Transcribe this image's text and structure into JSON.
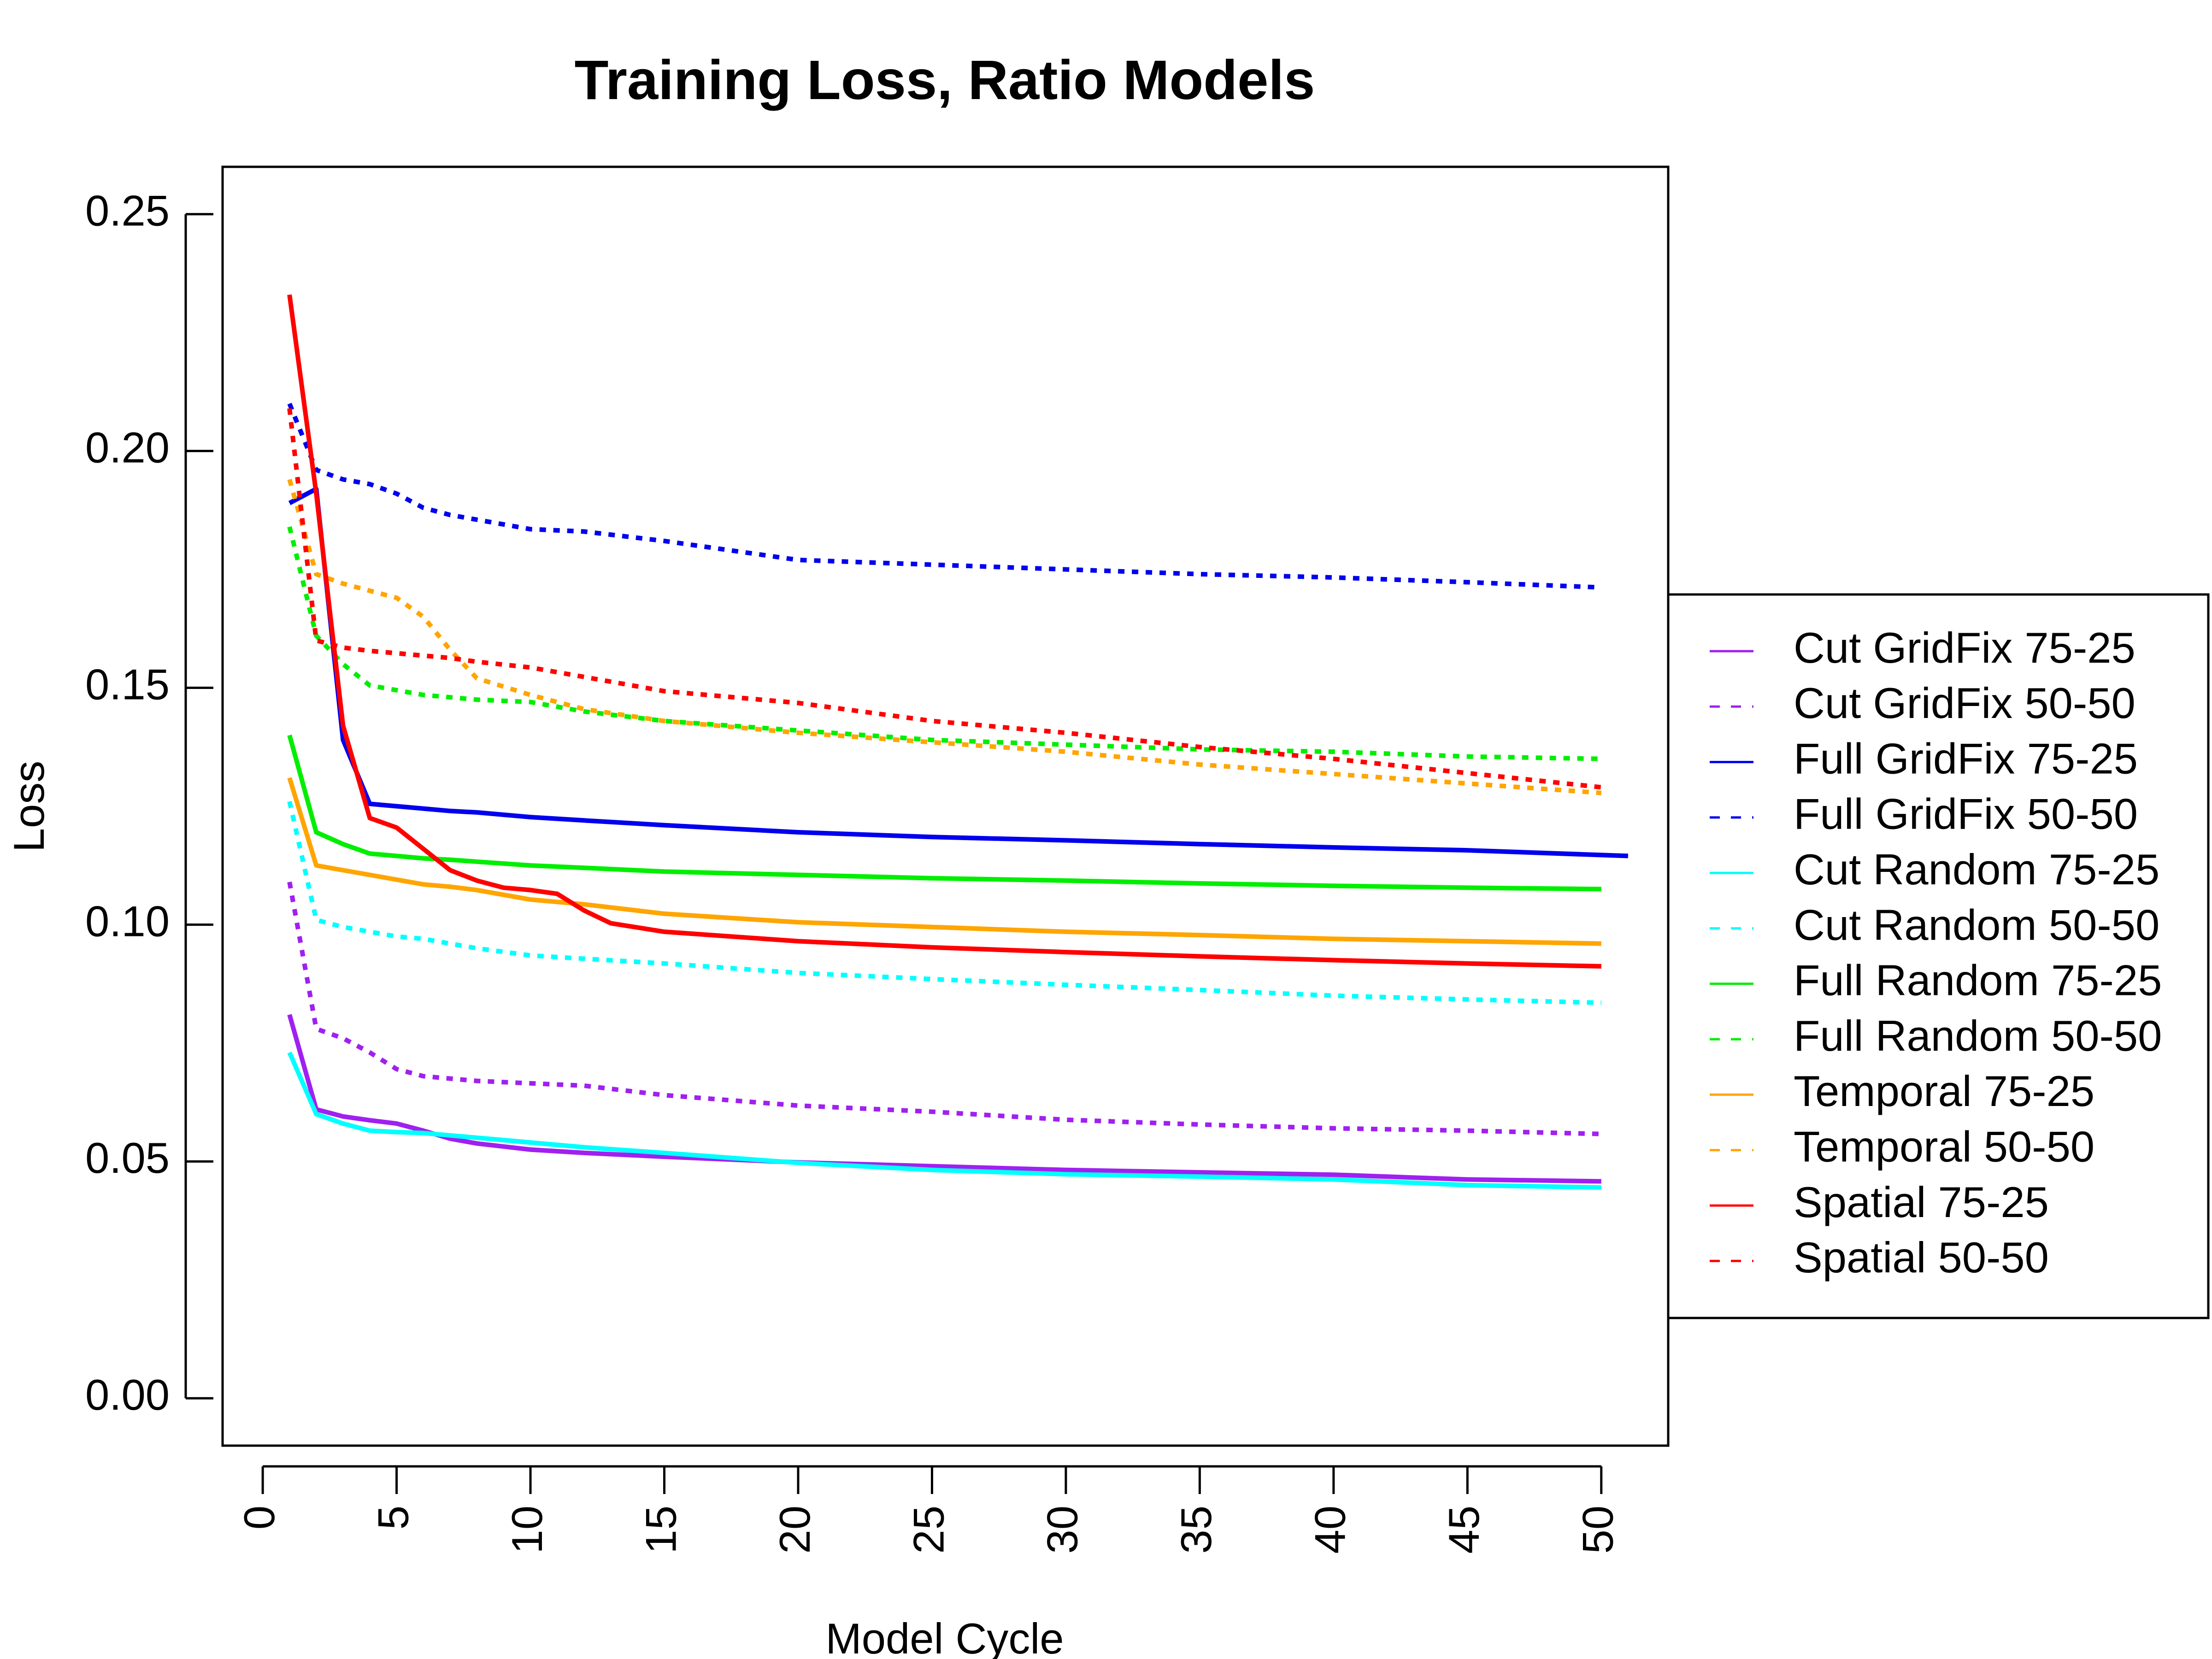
{
  "chart_data": {
    "type": "line",
    "title": "Training Loss, Ratio Models",
    "xlabel": "Model Cycle",
    "ylabel": "Loss",
    "xlim": [
      -1.5,
      52.5
    ],
    "ylim": [
      -0.01,
      0.26
    ],
    "xticks": [
      0,
      5,
      10,
      15,
      20,
      25,
      30,
      35,
      40,
      45,
      50
    ],
    "yticks": [
      0.0,
      0.05,
      0.1,
      0.15,
      0.2,
      0.25
    ],
    "xtick_labels": [
      "0",
      "5",
      "10",
      "15",
      "20",
      "25",
      "30",
      "35",
      "40",
      "45",
      "50"
    ],
    "ytick_labels": [
      "0.00",
      "0.05",
      "0.10",
      "0.15",
      "0.20",
      "0.25"
    ],
    "grid": false,
    "legend_position": "right",
    "series": [
      {
        "name": "Cut GridFix 75-25",
        "color": "#A020F0",
        "dash": "solid",
        "x": [
          1,
          2,
          3,
          4,
          5,
          6,
          7,
          8,
          10,
          12,
          15,
          20,
          25,
          30,
          35,
          40,
          45,
          50
        ],
        "y": [
          0.081,
          0.061,
          0.0595,
          0.0587,
          0.058,
          0.0565,
          0.0548,
          0.0538,
          0.0525,
          0.0518,
          0.051,
          0.0498,
          0.049,
          0.0482,
          0.0477,
          0.0472,
          0.0462,
          0.0458
        ]
      },
      {
        "name": "Cut GridFix 50-50",
        "color": "#A020F0",
        "dash": "dotted",
        "x": [
          1,
          2,
          3,
          4,
          5,
          6,
          7,
          8,
          10,
          12,
          15,
          20,
          25,
          30,
          35,
          40,
          45,
          50
        ],
        "y": [
          0.109,
          0.078,
          0.076,
          0.073,
          0.0695,
          0.068,
          0.0675,
          0.067,
          0.0665,
          0.066,
          0.064,
          0.0618,
          0.0605,
          0.0588,
          0.0578,
          0.057,
          0.0565,
          0.0558
        ]
      },
      {
        "name": "Full GridFix 75-25",
        "color": "#0000EE",
        "dash": "solid",
        "x": [
          1,
          2,
          3,
          4,
          5,
          6,
          7,
          8,
          10,
          12,
          15,
          20,
          25,
          30,
          35,
          40,
          45,
          50,
          51
        ],
        "y": [
          0.189,
          0.192,
          0.139,
          0.1255,
          0.125,
          0.1245,
          0.124,
          0.1237,
          0.1227,
          0.122,
          0.121,
          0.1195,
          0.1185,
          0.1178,
          0.117,
          0.1163,
          0.1157,
          0.1147,
          0.1145
        ]
      },
      {
        "name": "Full GridFix 50-50",
        "color": "#0000EE",
        "dash": "dotted",
        "x": [
          1,
          2,
          3,
          4,
          5,
          6,
          7,
          8,
          10,
          12,
          15,
          20,
          25,
          30,
          35,
          40,
          45,
          50
        ],
        "y": [
          0.21,
          0.196,
          0.194,
          0.193,
          0.191,
          0.188,
          0.1865,
          0.1855,
          0.1835,
          0.183,
          0.181,
          0.177,
          0.176,
          0.175,
          0.174,
          0.1733,
          0.1723,
          0.1712
        ]
      },
      {
        "name": "Cut Random 75-25",
        "color": "#00FFFF",
        "dash": "solid",
        "x": [
          1,
          2,
          3,
          4,
          5,
          6,
          7,
          8,
          10,
          12,
          15,
          20,
          25,
          30,
          35,
          40,
          45,
          50
        ],
        "y": [
          0.073,
          0.06,
          0.058,
          0.0565,
          0.0562,
          0.056,
          0.0555,
          0.055,
          0.054,
          0.053,
          0.0518,
          0.0497,
          0.0482,
          0.0473,
          0.0468,
          0.0462,
          0.045,
          0.0445
        ]
      },
      {
        "name": "Cut Random 50-50",
        "color": "#00FFFF",
        "dash": "dotted",
        "x": [
          1,
          2,
          3,
          4,
          5,
          6,
          7,
          8,
          10,
          12,
          15,
          20,
          25,
          30,
          35,
          40,
          45,
          50
        ],
        "y": [
          0.126,
          0.101,
          0.0995,
          0.0985,
          0.0975,
          0.097,
          0.096,
          0.095,
          0.0935,
          0.0928,
          0.0918,
          0.0898,
          0.0885,
          0.0873,
          0.0862,
          0.085,
          0.0842,
          0.0835
        ]
      },
      {
        "name": "Full Random 75-25",
        "color": "#00EE00",
        "dash": "solid",
        "x": [
          1,
          2,
          3,
          4,
          5,
          6,
          7,
          8,
          10,
          12,
          15,
          20,
          25,
          30,
          35,
          40,
          45,
          50
        ],
        "y": [
          0.14,
          0.1195,
          0.117,
          0.115,
          0.1145,
          0.114,
          0.1137,
          0.1133,
          0.1125,
          0.112,
          0.1112,
          0.1105,
          0.1098,
          0.1093,
          0.1087,
          0.1082,
          0.1078,
          0.1075
        ]
      },
      {
        "name": "Full Random 50-50",
        "color": "#00EE00",
        "dash": "dotted",
        "x": [
          1,
          2,
          3,
          4,
          5,
          6,
          7,
          8,
          10,
          12,
          15,
          20,
          25,
          30,
          35,
          40,
          45,
          50
        ],
        "y": [
          0.184,
          0.161,
          0.155,
          0.1505,
          0.1495,
          0.1485,
          0.148,
          0.1475,
          0.147,
          0.145,
          0.143,
          0.141,
          0.139,
          0.138,
          0.137,
          0.1365,
          0.1355,
          0.135
        ]
      },
      {
        "name": "Temporal 75-25",
        "color": "#FFA500",
        "dash": "solid",
        "x": [
          1,
          2,
          3,
          4,
          5,
          6,
          7,
          8,
          10,
          12,
          15,
          20,
          25,
          30,
          35,
          40,
          45,
          50
        ],
        "y": [
          0.131,
          0.1125,
          0.1115,
          0.1105,
          0.1095,
          0.1085,
          0.108,
          0.1073,
          0.1053,
          0.1043,
          0.1023,
          0.1005,
          0.0995,
          0.0985,
          0.0978,
          0.097,
          0.0965,
          0.096
        ]
      },
      {
        "name": "Temporal 50-50",
        "color": "#FFA500",
        "dash": "dotted",
        "x": [
          1,
          2,
          3,
          4,
          5,
          6,
          7,
          8,
          10,
          12,
          15,
          20,
          25,
          30,
          35,
          40,
          45,
          50
        ],
        "y": [
          0.194,
          0.174,
          0.172,
          0.1705,
          0.169,
          0.165,
          0.158,
          0.152,
          0.1485,
          0.1455,
          0.143,
          0.1405,
          0.1385,
          0.1365,
          0.1338,
          0.1318,
          0.1298,
          0.1278
        ]
      },
      {
        "name": "Spatial 75-25",
        "color": "#FF0000",
        "dash": "solid",
        "x": [
          1,
          2,
          3,
          4,
          5,
          6,
          7,
          8,
          9,
          10,
          11,
          12,
          13,
          15,
          20,
          25,
          30,
          35,
          40,
          45,
          50
        ],
        "y": [
          0.233,
          0.191,
          0.142,
          0.1225,
          0.1205,
          0.116,
          0.1115,
          0.1093,
          0.1078,
          0.1073,
          0.1065,
          0.103,
          0.1003,
          0.0985,
          0.0965,
          0.0952,
          0.0942,
          0.0933,
          0.0925,
          0.0918,
          0.0912
        ]
      },
      {
        "name": "Spatial 50-50",
        "color": "#FF0000",
        "dash": "dotted",
        "x": [
          1,
          2,
          3,
          4,
          5,
          6,
          7,
          8,
          10,
          12,
          15,
          20,
          25,
          30,
          35,
          40,
          45,
          50
        ],
        "y": [
          0.209,
          0.16,
          0.1585,
          0.1578,
          0.1573,
          0.1568,
          0.1563,
          0.1555,
          0.1543,
          0.1523,
          0.1493,
          0.1468,
          0.143,
          0.1405,
          0.1375,
          0.135,
          0.132,
          0.129
        ]
      }
    ]
  }
}
